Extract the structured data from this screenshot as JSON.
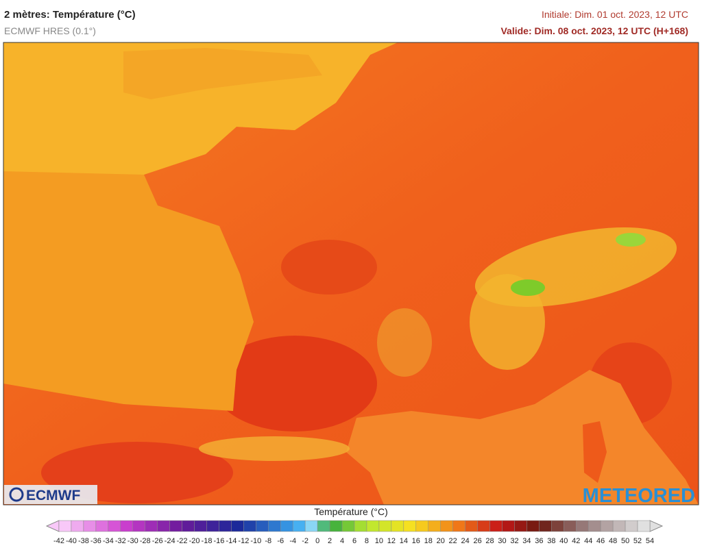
{
  "header": {
    "title": "2 mètres: Température (°C)",
    "subtitle": "ECMWF HRES (0.1°)",
    "initial": "Initiale: Dim. 01 oct. 2023, 12 UTC",
    "valid": "Valide: Dim. 08 oct. 2023, 12 UTC (H+168)"
  },
  "logos": {
    "left": "ECMWF",
    "right": "METEORED"
  },
  "legend": {
    "title": "Température (°C)",
    "ticks": [
      -42,
      -40,
      -38,
      -36,
      -34,
      -32,
      -30,
      -28,
      -26,
      -24,
      -22,
      -20,
      -18,
      -16,
      -14,
      -12,
      -10,
      -8,
      -6,
      -4,
      -2,
      0,
      2,
      4,
      6,
      8,
      10,
      12,
      14,
      16,
      18,
      20,
      22,
      24,
      26,
      28,
      30,
      32,
      34,
      36,
      38,
      40,
      42,
      44,
      46,
      48,
      50,
      52,
      54
    ]
  }
}
